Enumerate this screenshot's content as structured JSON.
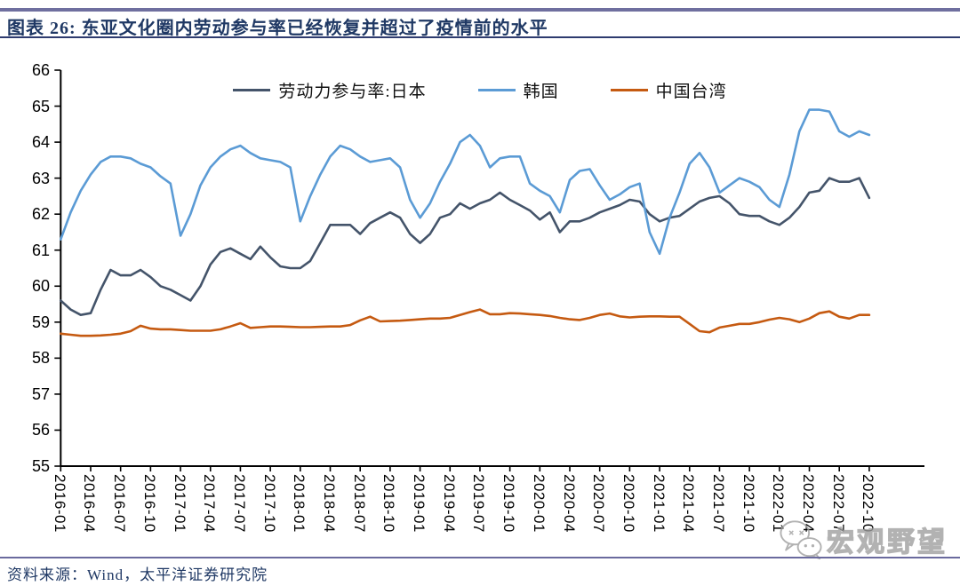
{
  "header": {
    "title": "图表 26:  东亚文化圈内劳动参与率已经恢复并超过了疫情前的水平"
  },
  "footer": {
    "source": "资料来源：Wind，太平洋证券研究院"
  },
  "watermark": {
    "icon": "wechat-icon",
    "text": "宏观野望"
  },
  "chart_data": {
    "type": "line",
    "title": "东亚文化圈内劳动参与率已经恢复并超过了疫情前的水平",
    "xlabel": "",
    "ylabel": "",
    "ylim": [
      55,
      66
    ],
    "yticks": [
      66,
      65,
      64,
      63,
      62,
      61,
      60,
      59,
      58,
      57,
      56,
      55
    ],
    "grid": false,
    "legend_position": "top",
    "x": [
      "2016-01",
      "2016-02",
      "2016-03",
      "2016-04",
      "2016-05",
      "2016-06",
      "2016-07",
      "2016-08",
      "2016-09",
      "2016-10",
      "2016-11",
      "2016-12",
      "2017-01",
      "2017-02",
      "2017-03",
      "2017-04",
      "2017-05",
      "2017-06",
      "2017-07",
      "2017-08",
      "2017-09",
      "2017-10",
      "2017-11",
      "2017-12",
      "2018-01",
      "2018-02",
      "2018-03",
      "2018-04",
      "2018-05",
      "2018-06",
      "2018-07",
      "2018-08",
      "2018-09",
      "2018-10",
      "2018-11",
      "2018-12",
      "2019-01",
      "2019-02",
      "2019-03",
      "2019-04",
      "2019-05",
      "2019-06",
      "2019-07",
      "2019-08",
      "2019-09",
      "2019-10",
      "2019-11",
      "2019-12",
      "2020-01",
      "2020-02",
      "2020-03",
      "2020-04",
      "2020-05",
      "2020-06",
      "2020-07",
      "2020-08",
      "2020-09",
      "2020-10",
      "2020-11",
      "2020-12",
      "2021-01",
      "2021-02",
      "2021-03",
      "2021-04",
      "2021-05",
      "2021-06",
      "2021-07",
      "2021-08",
      "2021-09",
      "2021-10",
      "2021-11",
      "2021-12",
      "2022-01",
      "2022-02",
      "2022-03",
      "2022-04",
      "2022-05",
      "2022-06",
      "2022-07",
      "2022-08",
      "2022-09",
      "2022-10"
    ],
    "x_tick_labels": [
      "2016-01",
      "2016-04",
      "2016-07",
      "2016-10",
      "2017-01",
      "2017-04",
      "2017-07",
      "2017-10",
      "2018-01",
      "2018-04",
      "2018-07",
      "2018-10",
      "2019-01",
      "2019-04",
      "2019-07",
      "2019-10",
      "2020-01",
      "2020-04",
      "2020-07",
      "2020-10",
      "2021-01",
      "2021-04",
      "2021-07",
      "2021-10",
      "2022-01",
      "2022-04",
      "2022-07",
      "2022-10"
    ],
    "series": [
      {
        "name": "劳动力参与率:日本",
        "color": "#44546A",
        "values": [
          59.6,
          59.35,
          59.2,
          59.25,
          59.9,
          60.45,
          60.3,
          60.3,
          60.45,
          60.25,
          60.0,
          59.9,
          59.75,
          59.6,
          60.0,
          60.6,
          60.95,
          61.05,
          60.9,
          60.75,
          61.1,
          60.8,
          60.55,
          60.5,
          60.5,
          60.7,
          61.2,
          61.7,
          61.7,
          61.7,
          61.45,
          61.75,
          61.9,
          62.05,
          61.9,
          61.45,
          61.2,
          61.45,
          61.9,
          62.0,
          62.3,
          62.15,
          62.3,
          62.4,
          62.6,
          62.4,
          62.25,
          62.1,
          61.85,
          62.05,
          61.5,
          61.8,
          61.8,
          61.9,
          62.05,
          62.15,
          62.25,
          62.4,
          62.35,
          62.0,
          61.8,
          61.9,
          61.95,
          62.15,
          62.35,
          62.45,
          62.5,
          62.3,
          62.0,
          61.95,
          61.95,
          61.8,
          61.7,
          61.9,
          62.2,
          62.6,
          62.65,
          63.0,
          62.9,
          62.9,
          63.0,
          62.45
        ]
      },
      {
        "name": "韩国",
        "color": "#5B9BD5",
        "values": [
          61.3,
          62.05,
          62.65,
          63.1,
          63.45,
          63.6,
          63.6,
          63.55,
          63.4,
          63.3,
          63.05,
          62.85,
          61.4,
          62.0,
          62.8,
          63.3,
          63.6,
          63.8,
          63.9,
          63.7,
          63.55,
          63.5,
          63.45,
          63.3,
          61.8,
          62.5,
          63.1,
          63.6,
          63.9,
          63.8,
          63.6,
          63.45,
          63.5,
          63.55,
          63.3,
          62.4,
          61.9,
          62.3,
          62.9,
          63.4,
          64.0,
          64.2,
          63.9,
          63.3,
          63.55,
          63.6,
          63.6,
          62.85,
          62.65,
          62.5,
          62.05,
          62.95,
          63.2,
          63.25,
          62.8,
          62.4,
          62.55,
          62.75,
          62.85,
          61.5,
          60.9,
          61.9,
          62.6,
          63.4,
          63.7,
          63.3,
          62.6,
          62.8,
          63.0,
          62.9,
          62.75,
          62.4,
          62.2,
          63.1,
          64.3,
          64.9,
          64.9,
          64.85,
          64.3,
          64.15,
          64.3,
          64.2
        ]
      },
      {
        "name": "中国台湾",
        "color": "#C55A11",
        "values": [
          58.68,
          58.65,
          58.62,
          58.62,
          58.63,
          58.65,
          58.68,
          58.75,
          58.9,
          58.82,
          58.8,
          58.8,
          58.78,
          58.76,
          58.76,
          58.76,
          58.8,
          58.88,
          58.97,
          58.84,
          58.86,
          58.88,
          58.88,
          58.87,
          58.86,
          58.86,
          58.87,
          58.88,
          58.88,
          58.92,
          59.05,
          59.15,
          59.02,
          59.03,
          59.04,
          59.06,
          59.08,
          59.1,
          59.1,
          59.12,
          59.2,
          59.28,
          59.35,
          59.22,
          59.22,
          59.25,
          59.24,
          59.22,
          59.2,
          59.17,
          59.12,
          59.08,
          59.06,
          59.12,
          59.2,
          59.24,
          59.16,
          59.13,
          59.15,
          59.16,
          59.16,
          59.15,
          59.15,
          58.95,
          58.75,
          58.72,
          58.85,
          58.9,
          58.95,
          58.95,
          59.0,
          59.07,
          59.12,
          59.08,
          59.0,
          59.1,
          59.25,
          59.3,
          59.15,
          59.1,
          59.2,
          59.2
        ]
      }
    ]
  }
}
